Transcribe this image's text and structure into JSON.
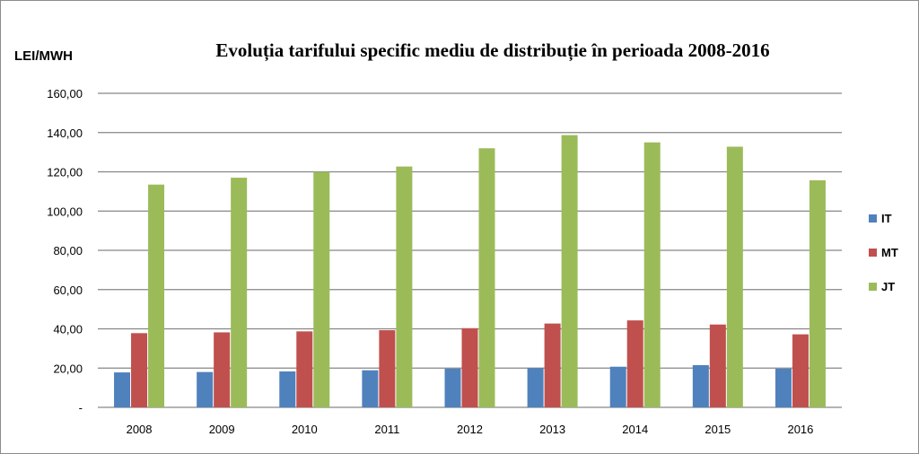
{
  "chart_data": {
    "type": "bar",
    "title": "Evoluția tarifului specific mediu de distribuție în perioada 2008-2016",
    "ylabel": "LEI/MWH",
    "xlabel": "",
    "ylim": [
      0,
      160
    ],
    "ytick_labels": [
      "-",
      "20,00",
      "40,00",
      "60,00",
      "80,00",
      "100,00",
      "120,00",
      "140,00",
      "160,00"
    ],
    "ytick_values": [
      0,
      20,
      40,
      60,
      80,
      100,
      120,
      140,
      160
    ],
    "grid": true,
    "legend_position": "right",
    "categories": [
      "2008",
      "2009",
      "2010",
      "2011",
      "2012",
      "2013",
      "2014",
      "2015",
      "2016"
    ],
    "series": [
      {
        "name": "IT",
        "color": "#4f81bd",
        "values": [
          17.8,
          18.0,
          18.3,
          18.9,
          19.7,
          20.0,
          20.7,
          21.5,
          19.7
        ]
      },
      {
        "name": "MT",
        "color": "#c0504d",
        "values": [
          37.8,
          38.2,
          38.7,
          39.3,
          40.3,
          42.7,
          44.3,
          42.2,
          37.2
        ]
      },
      {
        "name": "JT",
        "color": "#9bbb59",
        "values": [
          113.5,
          117.0,
          120.0,
          122.7,
          132.0,
          138.7,
          135.0,
          132.8,
          115.7
        ]
      }
    ]
  }
}
